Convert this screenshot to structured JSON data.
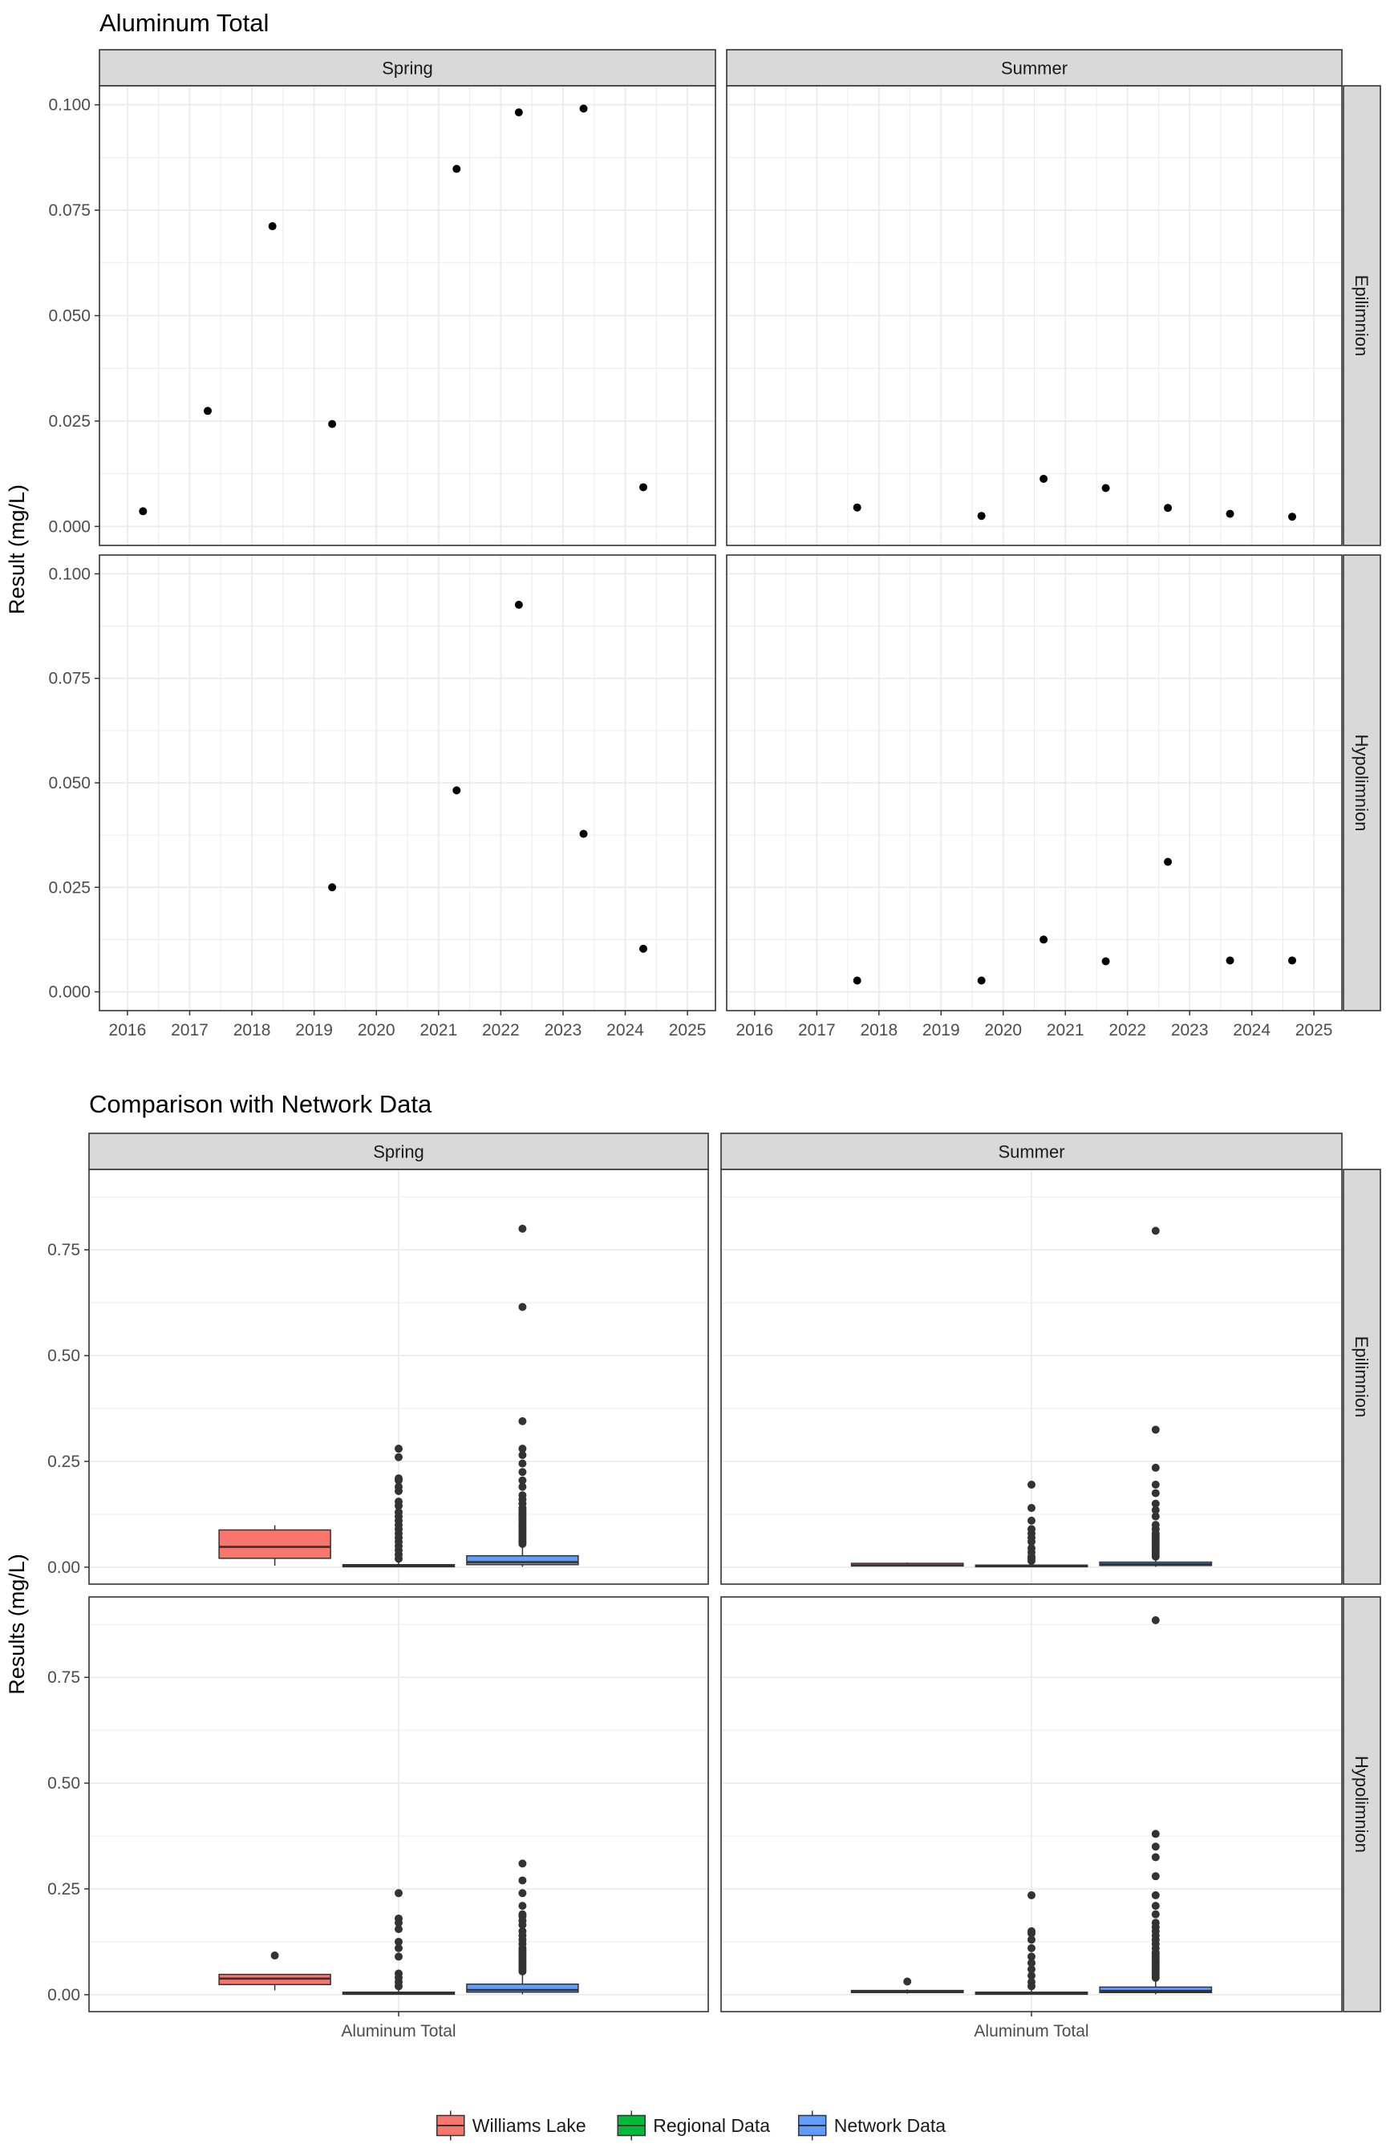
{
  "colors": {
    "strip_bg": "#d9d9d9",
    "grid": "#ebebeb",
    "panel_border": "#333333",
    "point": "#000000",
    "outlier": "#333333",
    "williams_lake": "#f8766d",
    "regional": "#00ba38",
    "network": "#619cff"
  },
  "chart_data": [
    {
      "type": "scatter",
      "title": "Aluminum Total",
      "ylabel": "Result (mg/L)",
      "xlabel": "",
      "columns": [
        "Spring",
        "Summer"
      ],
      "rows": [
        "Epilimnion",
        "Hypolimnion"
      ],
      "xlim": [
        2015.55,
        2025.45
      ],
      "ylim": [
        -0.0045,
        0.1045
      ],
      "x_ticks": [
        "2016",
        "2017",
        "2018",
        "2019",
        "2020",
        "2021",
        "2022",
        "2023",
        "2024",
        "2025"
      ],
      "y_ticks": [
        "0.000",
        "0.025",
        "0.050",
        "0.075",
        "0.100"
      ],
      "grid": true,
      "panels": [
        {
          "column": "Spring",
          "row": "Epilimnion",
          "points": [
            [
              2016.25,
              0.0036
            ],
            [
              2017.29,
              0.0274
            ],
            [
              2018.33,
              0.0712
            ],
            [
              2019.29,
              0.0243
            ],
            [
              2021.29,
              0.0848
            ],
            [
              2022.29,
              0.0982
            ],
            [
              2023.33,
              0.0991
            ],
            [
              2024.29,
              0.0093
            ]
          ]
        },
        {
          "column": "Summer",
          "row": "Epilimnion",
          "points": [
            [
              2017.65,
              0.0045
            ],
            [
              2019.65,
              0.0025
            ],
            [
              2020.65,
              0.0113
            ],
            [
              2021.65,
              0.0091
            ],
            [
              2022.65,
              0.0044
            ],
            [
              2023.65,
              0.003
            ],
            [
              2024.65,
              0.0023
            ]
          ]
        },
        {
          "column": "Spring",
          "row": "Hypolimnion",
          "points": [
            [
              2019.29,
              0.025
            ],
            [
              2021.29,
              0.0482
            ],
            [
              2022.29,
              0.0926
            ],
            [
              2023.33,
              0.0378
            ],
            [
              2024.29,
              0.0103
            ]
          ]
        },
        {
          "column": "Summer",
          "row": "Hypolimnion",
          "points": [
            [
              2017.65,
              0.0027
            ],
            [
              2019.65,
              0.0027
            ],
            [
              2020.65,
              0.0125
            ],
            [
              2021.65,
              0.0073
            ],
            [
              2022.65,
              0.0311
            ],
            [
              2023.65,
              0.0075
            ],
            [
              2024.65,
              0.0075
            ]
          ]
        }
      ]
    },
    {
      "type": "box",
      "title": "Comparison with Network Data",
      "ylabel": "Results (mg/L)",
      "xlabel": "",
      "columns": [
        "Spring",
        "Summer"
      ],
      "rows": [
        "Epilimnion",
        "Hypolimnion"
      ],
      "x_category": "Aluminum Total",
      "ylim": [
        -0.04,
        0.94
      ],
      "y_ticks": [
        "0.00",
        "0.25",
        "0.50",
        "0.75"
      ],
      "grid": true,
      "legend": {
        "position": "bottom",
        "entries": [
          "Williams Lake",
          "Regional Data",
          "Network Data"
        ]
      },
      "panels": [
        {
          "column": "Spring",
          "row": "Epilimnion",
          "boxes": [
            {
              "series": "Williams Lake",
              "min": 0.0036,
              "q1": 0.021,
              "median": 0.048,
              "q3": 0.088,
              "max": 0.0991,
              "outliers": []
            },
            {
              "series": "Regional Data",
              "min": 0.0,
              "q1": 0.001,
              "median": 0.003,
              "q3": 0.006,
              "max": 0.012,
              "outliers": [
                0.02,
                0.03,
                0.04,
                0.05,
                0.06,
                0.07,
                0.08,
                0.09,
                0.1,
                0.11,
                0.12,
                0.13,
                0.145,
                0.155,
                0.18,
                0.19,
                0.205,
                0.21,
                0.26,
                0.28
              ]
            },
            {
              "series": "Network Data",
              "min": 0.001,
              "q1": 0.006,
              "median": 0.012,
              "q3": 0.027,
              "max": 0.05,
              "outliers": [
                0.055,
                0.06,
                0.065,
                0.07,
                0.075,
                0.08,
                0.085,
                0.09,
                0.095,
                0.1,
                0.105,
                0.11,
                0.115,
                0.12,
                0.125,
                0.13,
                0.135,
                0.14,
                0.15,
                0.16,
                0.17,
                0.19,
                0.205,
                0.225,
                0.245,
                0.265,
                0.28,
                0.345,
                0.615,
                0.8
              ]
            }
          ]
        },
        {
          "column": "Summer",
          "row": "Epilimnion",
          "boxes": [
            {
              "series": "Williams Lake",
              "min": 0.0023,
              "q1": 0.0028,
              "median": 0.0044,
              "q3": 0.0091,
              "max": 0.0113,
              "outliers": []
            },
            {
              "series": "Regional Data",
              "min": 0.0,
              "q1": 0.001,
              "median": 0.003,
              "q3": 0.005,
              "max": 0.011,
              "outliers": [
                0.015,
                0.02,
                0.025,
                0.035,
                0.045,
                0.06,
                0.07,
                0.08,
                0.09,
                0.11,
                0.14,
                0.195
              ]
            },
            {
              "series": "Network Data",
              "min": 0.001,
              "q1": 0.004,
              "median": 0.007,
              "q3": 0.012,
              "max": 0.02,
              "outliers": [
                0.025,
                0.03,
                0.035,
                0.04,
                0.045,
                0.05,
                0.055,
                0.06,
                0.065,
                0.07,
                0.075,
                0.08,
                0.09,
                0.1,
                0.12,
                0.135,
                0.15,
                0.175,
                0.195,
                0.235,
                0.325,
                0.795
              ]
            }
          ]
        },
        {
          "column": "Spring",
          "row": "Hypolimnion",
          "boxes": [
            {
              "series": "Williams Lake",
              "min": 0.0103,
              "q1": 0.024,
              "median": 0.038,
              "q3": 0.048,
              "max": 0.0482,
              "outliers": [
                0.0926
              ]
            },
            {
              "series": "Regional Data",
              "min": 0.0,
              "q1": 0.001,
              "median": 0.003,
              "q3": 0.006,
              "max": 0.012,
              "outliers": [
                0.02,
                0.03,
                0.04,
                0.05,
                0.09,
                0.11,
                0.125,
                0.155,
                0.17,
                0.18,
                0.24
              ]
            },
            {
              "series": "Network Data",
              "min": 0.001,
              "q1": 0.006,
              "median": 0.011,
              "q3": 0.025,
              "max": 0.05,
              "outliers": [
                0.055,
                0.06,
                0.065,
                0.07,
                0.075,
                0.08,
                0.085,
                0.09,
                0.095,
                0.1,
                0.105,
                0.11,
                0.12,
                0.13,
                0.14,
                0.15,
                0.165,
                0.175,
                0.185,
                0.19,
                0.21,
                0.24,
                0.27,
                0.31
              ]
            }
          ]
        },
        {
          "column": "Summer",
          "row": "Hypolimnion",
          "boxes": [
            {
              "series": "Williams Lake",
              "min": 0.0027,
              "q1": 0.005,
              "median": 0.0075,
              "q3": 0.01,
              "max": 0.0125,
              "outliers": [
                0.0311
              ]
            },
            {
              "series": "Regional Data",
              "min": 0.0,
              "q1": 0.001,
              "median": 0.003,
              "q3": 0.006,
              "max": 0.012,
              "outliers": [
                0.02,
                0.03,
                0.045,
                0.06,
                0.075,
                0.09,
                0.11,
                0.13,
                0.145,
                0.15,
                0.235
              ]
            },
            {
              "series": "Network Data",
              "min": 0.001,
              "q1": 0.005,
              "median": 0.009,
              "q3": 0.018,
              "max": 0.035,
              "outliers": [
                0.04,
                0.045,
                0.05,
                0.055,
                0.06,
                0.065,
                0.07,
                0.075,
                0.08,
                0.085,
                0.09,
                0.095,
                0.1,
                0.11,
                0.12,
                0.13,
                0.14,
                0.15,
                0.16,
                0.17,
                0.19,
                0.21,
                0.235,
                0.28,
                0.325,
                0.35,
                0.38,
                0.885
              ]
            }
          ]
        }
      ]
    }
  ]
}
